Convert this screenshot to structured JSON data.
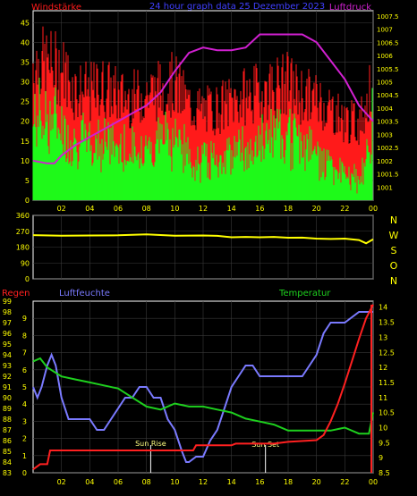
{
  "colors": {
    "background": "#000000",
    "frame": "#ffffff",
    "grid": "#3a3a3a",
    "wind_speed": "#ff1a1a",
    "wind_gust": "#1aff1a",
    "pressure": "#d020d0",
    "direction": "#ffff00",
    "rain": "#ff2020",
    "humidity": "#7a7aff",
    "temperature": "#1ed01e",
    "title": "#4040ff",
    "compass": "#ffff00",
    "axis_text": "#ffff00",
    "sun_line": "#ffffff"
  },
  "header": {
    "left_label": "Windstärke",
    "title": "24 hour graph data  25 Dezember 2023",
    "right_label": "Luftdruck"
  },
  "compass": [
    "N",
    "W",
    "S",
    "O",
    "N"
  ],
  "lower_labels": {
    "rain": "Regen",
    "humidity": "Luftfeuchte",
    "temperature": "Temperatur"
  },
  "sun": {
    "rise": "Sun Rise",
    "set": "Sun Set",
    "rise_hour": 8.3,
    "set_hour": 16.4
  },
  "chart_data": [
    {
      "type": "area",
      "x_ticks": [
        "02",
        "04",
        "06",
        "08",
        "10",
        "12",
        "14",
        "16",
        "18",
        "20",
        "22",
        "00"
      ],
      "xlim_hours": [
        0,
        24
      ],
      "left_axis": {
        "label": "Windstärke",
        "ylim": [
          0,
          48
        ],
        "ticks": [
          "0",
          "5",
          "10",
          "15",
          "20",
          "25",
          "30",
          "35",
          "40",
          "45"
        ]
      },
      "right_axis": {
        "label": "Luftdruck",
        "ylim": [
          1000.5,
          1007.7
        ],
        "ticks": [
          "1001",
          "1001.5",
          "1002",
          "1002.5",
          "1003",
          "1003.5",
          "1004",
          "1004.5",
          "1005",
          "1005.5",
          "1006",
          "1006.5",
          "1007",
          "1007.5"
        ]
      },
      "series": [
        {
          "name": "Windstärke",
          "hours": [
            0,
            1,
            2,
            3,
            4,
            5,
            6,
            7,
            8,
            9,
            10,
            11,
            12,
            13,
            14,
            15,
            16,
            17,
            18,
            19,
            20,
            21,
            22,
            23,
            24
          ],
          "peak": [
            45,
            44,
            43,
            36,
            35,
            37,
            34,
            33,
            35,
            36,
            38,
            31,
            29,
            30,
            32,
            34,
            35,
            37,
            38,
            34,
            33,
            30,
            26,
            25,
            38
          ],
          "mean": [
            20,
            22,
            18,
            15,
            14,
            16,
            13,
            12,
            14,
            15,
            17,
            11,
            10,
            11,
            12,
            13,
            14,
            16,
            17,
            14,
            12,
            9,
            6,
            5,
            20
          ]
        },
        {
          "name": "Luftdruck",
          "points": [
            [
              0,
              1002.0
            ],
            [
              1,
              1001.9
            ],
            [
              1.5,
              1001.9
            ],
            [
              2,
              1002.2
            ],
            [
              3,
              1002.6
            ],
            [
              4,
              1002.9
            ],
            [
              5,
              1003.2
            ],
            [
              6,
              1003.5
            ],
            [
              7,
              1003.8
            ],
            [
              8,
              1004.1
            ],
            [
              9,
              1004.6
            ],
            [
              10,
              1005.4
            ],
            [
              11,
              1006.1
            ],
            [
              12,
              1006.3
            ],
            [
              13,
              1006.2
            ],
            [
              14,
              1006.2
            ],
            [
              15,
              1006.3
            ],
            [
              16,
              1006.8
            ],
            [
              17,
              1006.8
            ],
            [
              18,
              1006.8
            ],
            [
              19,
              1006.8
            ],
            [
              20,
              1006.5
            ],
            [
              21,
              1005.8
            ],
            [
              22,
              1005.1
            ],
            [
              23,
              1004.1
            ],
            [
              24,
              1003.5
            ]
          ]
        }
      ]
    },
    {
      "type": "line",
      "x_ticks": [
        "02",
        "04",
        "06",
        "08",
        "10",
        "12",
        "14",
        "16",
        "18",
        "20",
        "22",
        "00"
      ],
      "xlim_hours": [
        0,
        24
      ],
      "y_axis": {
        "ylim": [
          0,
          360
        ],
        "ticks": [
          "0",
          "90",
          "180",
          "270",
          "360"
        ]
      },
      "series": [
        {
          "name": "Windrichtung",
          "points": [
            [
              0,
              248
            ],
            [
              2,
              245
            ],
            [
              4,
              246
            ],
            [
              6,
              247
            ],
            [
              8,
              252
            ],
            [
              10,
              245
            ],
            [
              12,
              246
            ],
            [
              13,
              244
            ],
            [
              14,
              236
            ],
            [
              15,
              238
            ],
            [
              16,
              236
            ],
            [
              17,
              238
            ],
            [
              18,
              233
            ],
            [
              19,
              234
            ],
            [
              20,
              228
            ],
            [
              21,
              226
            ],
            [
              22,
              228
            ],
            [
              23,
              220
            ],
            [
              23.5,
              202
            ],
            [
              24,
              224
            ]
          ]
        }
      ]
    },
    {
      "type": "line",
      "x_ticks": [
        "02",
        "04",
        "06",
        "08",
        "10",
        "12",
        "14",
        "16",
        "18",
        "20",
        "22",
        "00"
      ],
      "xlim_hours": [
        0,
        24
      ],
      "left_axis_rain": {
        "label": "Regen",
        "ylim": [
          0,
          10
        ],
        "ticks": [
          "0",
          "1",
          "2",
          "3",
          "4",
          "5",
          "6",
          "7",
          "8",
          "9"
        ]
      },
      "left_axis_humidity": {
        "label": "Luftfeuchte",
        "ylim": [
          83,
          99
        ],
        "ticks": [
          "83",
          "84",
          "85",
          "86",
          "87",
          "88",
          "89",
          "90",
          "91",
          "92",
          "93",
          "94",
          "95",
          "96",
          "97",
          "98",
          "99"
        ]
      },
      "right_axis_temperature": {
        "label": "Temperatur",
        "ylim": [
          8.5,
          14.2
        ],
        "ticks": [
          "8.5",
          "9",
          "9.5",
          "10",
          "10.5",
          "11",
          "11.5",
          "12",
          "12.5",
          "13",
          "13.5",
          "14"
        ]
      },
      "series": [
        {
          "name": "Regen",
          "points": [
            [
              0,
              0.2
            ],
            [
              0.5,
              0.5
            ],
            [
              1,
              0.5
            ],
            [
              1.2,
              1.3
            ],
            [
              3,
              1.3
            ],
            [
              6,
              1.3
            ],
            [
              9,
              1.3
            ],
            [
              11.3,
              1.3
            ],
            [
              11.5,
              1.6
            ],
            [
              14,
              1.6
            ],
            [
              14.3,
              1.7
            ],
            [
              17,
              1.7
            ],
            [
              18,
              1.8
            ],
            [
              20,
              1.9
            ],
            [
              20.5,
              2.2
            ],
            [
              21,
              3.0
            ],
            [
              21.5,
              4.0
            ],
            [
              22,
              5.2
            ],
            [
              22.5,
              6.5
            ],
            [
              23,
              7.8
            ],
            [
              23.5,
              9.0
            ],
            [
              24,
              9.8
            ]
          ]
        },
        {
          "name": "Luftfeuchte",
          "points": [
            [
              0,
              91
            ],
            [
              0.3,
              90
            ],
            [
              0.6,
              91
            ],
            [
              1,
              93
            ],
            [
              1.3,
              94
            ],
            [
              1.6,
              93
            ],
            [
              2,
              90
            ],
            [
              2.5,
              88
            ],
            [
              3,
              88
            ],
            [
              4,
              88
            ],
            [
              4.5,
              87
            ],
            [
              5,
              87
            ],
            [
              5.5,
              88
            ],
            [
              6,
              89
            ],
            [
              6.5,
              90
            ],
            [
              7,
              90
            ],
            [
              7.5,
              91
            ],
            [
              8,
              91
            ],
            [
              8.5,
              90
            ],
            [
              9,
              90
            ],
            [
              9.5,
              88
            ],
            [
              10,
              87
            ],
            [
              10.5,
              85
            ],
            [
              10.8,
              84
            ],
            [
              11,
              84
            ],
            [
              11.5,
              84.5
            ],
            [
              12,
              84.5
            ],
            [
              12.5,
              86
            ],
            [
              13,
              87
            ],
            [
              13.5,
              89
            ],
            [
              14,
              91
            ],
            [
              14.5,
              92
            ],
            [
              15,
              93
            ],
            [
              15.5,
              93
            ],
            [
              16,
              92
            ],
            [
              17,
              92
            ],
            [
              18,
              92
            ],
            [
              19,
              92
            ],
            [
              19.5,
              93
            ],
            [
              20,
              94
            ],
            [
              20.5,
              96
            ],
            [
              21,
              97
            ],
            [
              22,
              97
            ],
            [
              23,
              98
            ],
            [
              24,
              98
            ]
          ]
        },
        {
          "name": "Temperatur",
          "points": [
            [
              0,
              12.2
            ],
            [
              0.5,
              12.3
            ],
            [
              1,
              12.0
            ],
            [
              2,
              11.7
            ],
            [
              3,
              11.6
            ],
            [
              4,
              11.5
            ],
            [
              5,
              11.4
            ],
            [
              6,
              11.3
            ],
            [
              7,
              11.0
            ],
            [
              8,
              10.7
            ],
            [
              9,
              10.6
            ],
            [
              10,
              10.8
            ],
            [
              11,
              10.7
            ],
            [
              12,
              10.7
            ],
            [
              13,
              10.6
            ],
            [
              14,
              10.5
            ],
            [
              15,
              10.3
            ],
            [
              16,
              10.2
            ],
            [
              17,
              10.1
            ],
            [
              18,
              9.9
            ],
            [
              19,
              9.9
            ],
            [
              20,
              9.9
            ],
            [
              21,
              9.9
            ],
            [
              22,
              10.0
            ],
            [
              23,
              9.8
            ],
            [
              23.7,
              9.8
            ],
            [
              24,
              10.5
            ]
          ]
        }
      ]
    }
  ]
}
